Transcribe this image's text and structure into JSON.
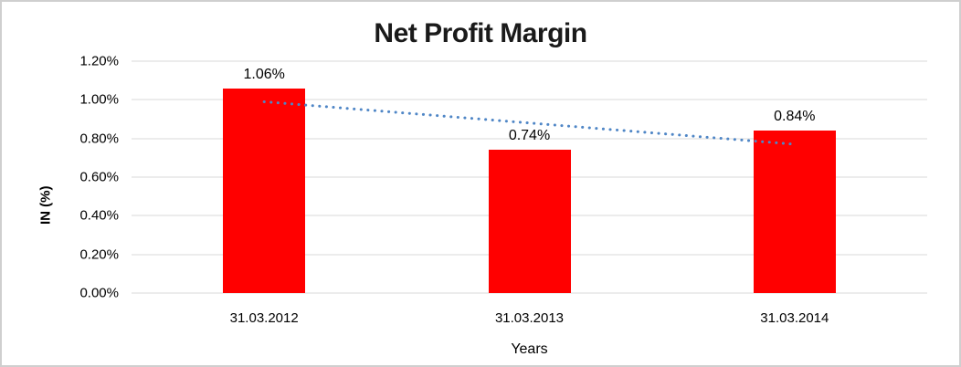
{
  "chart_data": {
    "type": "bar",
    "title": "Net Profit Margin",
    "xlabel": "Years",
    "ylabel": "IN (%)",
    "categories": [
      "31.03.2012",
      "31.03.2013",
      "31.03.2014"
    ],
    "values": [
      1.06,
      0.74,
      0.84
    ],
    "data_labels": [
      "1.06%",
      "0.74%",
      "0.84%"
    ],
    "y_ticks": [
      {
        "value": 1.2,
        "label": "1.20%"
      },
      {
        "value": 1.0,
        "label": "1.00%"
      },
      {
        "value": 0.8,
        "label": "0.80%"
      },
      {
        "value": 0.6,
        "label": "0.60%"
      },
      {
        "value": 0.4,
        "label": "0.40%"
      },
      {
        "value": 0.2,
        "label": "0.20%"
      },
      {
        "value": 0.0,
        "label": "0.00%"
      }
    ],
    "ylim": [
      0,
      1.2
    ],
    "grid": true,
    "legend": false,
    "bar_color": "#ff0000",
    "gridline_color": "#d9d9d9",
    "trendline": {
      "type": "linear",
      "style": "dotted",
      "color": "#4f86c6",
      "start_value": 0.99,
      "end_value": 0.77
    }
  }
}
